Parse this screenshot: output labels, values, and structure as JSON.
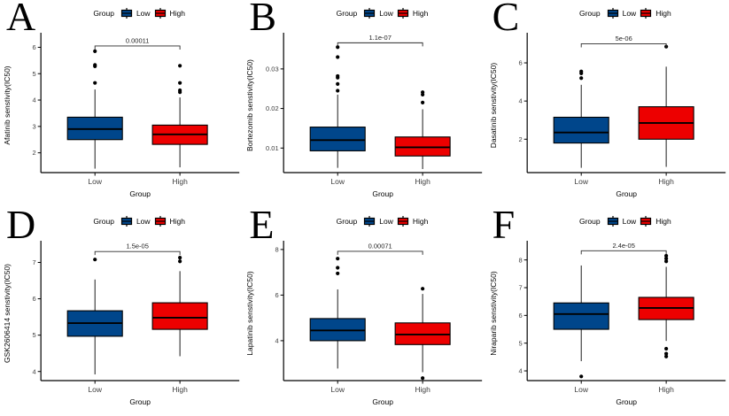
{
  "figure": {
    "background": "#ffffff",
    "legend": {
      "title": "Group",
      "items": [
        {
          "label": "Low",
          "color": "#00468B"
        },
        {
          "label": "High",
          "color": "#ED0000"
        }
      ]
    }
  },
  "chart_data": [
    {
      "type": "box",
      "panel": "A",
      "ylabel": "Afatinib senstivity(IC50)",
      "xlabel": "Group",
      "categories": [
        "Low",
        "High"
      ],
      "pvalue": "0.00011",
      "bracket_y": 6.05,
      "ylim": [
        1.25,
        6.35
      ],
      "yticks": [
        {
          "v": 2,
          "label": "2"
        },
        {
          "v": 3,
          "label": "3"
        },
        {
          "v": 4,
          "label": "4"
        },
        {
          "v": 5,
          "label": "5"
        },
        {
          "v": 6,
          "label": "6"
        }
      ],
      "series": [
        {
          "name": "Low",
          "color": "#00468B",
          "whisker_low": 1.4,
          "q1": 2.5,
          "median": 2.9,
          "q3": 3.35,
          "whisker_high": 4.4,
          "outliers": [
            4.65,
            5.28,
            5.33,
            5.85
          ]
        },
        {
          "name": "High",
          "color": "#ED0000",
          "whisker_low": 1.45,
          "q1": 2.32,
          "median": 2.7,
          "q3": 3.05,
          "whisker_high": 4.1,
          "outliers": [
            4.3,
            4.37,
            4.65,
            5.3
          ]
        }
      ]
    },
    {
      "type": "box",
      "panel": "B",
      "ylabel": "Bortezomib senstivity(IC50)",
      "xlabel": "Group",
      "categories": [
        "Low",
        "High"
      ],
      "pvalue": "1.1e-07",
      "bracket_y": 0.0366,
      "ylim": [
        0.0038,
        0.0378
      ],
      "yticks": [
        {
          "v": 0.01,
          "label": "0.01"
        },
        {
          "v": 0.02,
          "label": "0.02"
        },
        {
          "v": 0.03,
          "label": "0.03"
        }
      ],
      "series": [
        {
          "name": "Low",
          "color": "#00468B",
          "whisker_low": 0.005,
          "q1": 0.0093,
          "median": 0.012,
          "q3": 0.0153,
          "whisker_high": 0.0235,
          "outliers": [
            0.0245,
            0.0262,
            0.0278,
            0.0282,
            0.033,
            0.0355
          ]
        },
        {
          "name": "High",
          "color": "#ED0000",
          "whisker_low": 0.0047,
          "q1": 0.008,
          "median": 0.0102,
          "q3": 0.0128,
          "whisker_high": 0.0198,
          "outliers": [
            0.0215,
            0.0235,
            0.0241
          ]
        }
      ]
    },
    {
      "type": "box",
      "panel": "C",
      "ylabel": "Dasatinib senstivity(IC50)",
      "xlabel": "Group",
      "categories": [
        "Low",
        "High"
      ],
      "pvalue": "5e-06",
      "bracket_y": 7.0,
      "ylim": [
        0.25,
        7.3
      ],
      "yticks": [
        {
          "v": 2,
          "label": "2"
        },
        {
          "v": 4,
          "label": "4"
        },
        {
          "v": 6,
          "label": "6"
        }
      ],
      "series": [
        {
          "name": "Low",
          "color": "#00468B",
          "whisker_low": 0.5,
          "q1": 1.8,
          "median": 2.35,
          "q3": 3.15,
          "whisker_high": 4.85,
          "outliers": [
            5.2,
            5.45,
            5.55
          ]
        },
        {
          "name": "High",
          "color": "#ED0000",
          "whisker_low": 0.55,
          "q1": 2.0,
          "median": 2.85,
          "q3": 3.7,
          "whisker_high": 5.8,
          "outliers": [
            6.85
          ]
        }
      ]
    },
    {
      "type": "box",
      "panel": "D",
      "ylabel": "GSK2606414 senstivity(IC50)",
      "xlabel": "Group",
      "categories": [
        "Low",
        "High"
      ],
      "pvalue": "1.5e-05",
      "bracket_y": 7.3,
      "ylim": [
        3.75,
        7.45
      ],
      "yticks": [
        {
          "v": 4,
          "label": "4"
        },
        {
          "v": 5,
          "label": "5"
        },
        {
          "v": 6,
          "label": "6"
        },
        {
          "v": 7,
          "label": "7"
        }
      ],
      "series": [
        {
          "name": "Low",
          "color": "#00468B",
          "whisker_low": 3.92,
          "q1": 4.97,
          "median": 5.33,
          "q3": 5.67,
          "whisker_high": 6.53,
          "outliers": [
            7.08
          ]
        },
        {
          "name": "High",
          "color": "#ED0000",
          "whisker_low": 4.42,
          "q1": 5.16,
          "median": 5.48,
          "q3": 5.89,
          "whisker_high": 6.76,
          "outliers": [
            7.13,
            7.03
          ]
        }
      ]
    },
    {
      "type": "box",
      "panel": "E",
      "ylabel": "Lapatinib senstivity(IC50)",
      "xlabel": "Group",
      "categories": [
        "Low",
        "High"
      ],
      "pvalue": "0.00071",
      "bracket_y": 7.92,
      "ylim": [
        2.25,
        8.15
      ],
      "yticks": [
        {
          "v": 4,
          "label": "4"
        },
        {
          "v": 6,
          "label": "6"
        },
        {
          "v": 8,
          "label": "8"
        }
      ],
      "series": [
        {
          "name": "Low",
          "color": "#00468B",
          "whisker_low": 2.78,
          "q1": 4.0,
          "median": 4.45,
          "q3": 4.97,
          "whisker_high": 6.25,
          "outliers": [
            6.95,
            7.2,
            7.6
          ]
        },
        {
          "name": "High",
          "color": "#ED0000",
          "whisker_low": 2.62,
          "q1": 3.83,
          "median": 4.27,
          "q3": 4.78,
          "whisker_high": 6.05,
          "outliers": [
            6.28,
            2.36
          ]
        }
      ]
    },
    {
      "type": "box",
      "panel": "F",
      "ylabel": "Niraparib senstivity(IC50)",
      "xlabel": "Group",
      "categories": [
        "Low",
        "High"
      ],
      "pvalue": "2.4e-05",
      "bracket_y": 8.33,
      "ylim": [
        3.65,
        8.5
      ],
      "yticks": [
        {
          "v": 4,
          "label": "4"
        },
        {
          "v": 5,
          "label": "5"
        },
        {
          "v": 6,
          "label": "6"
        },
        {
          "v": 7,
          "label": "7"
        },
        {
          "v": 8,
          "label": "8"
        }
      ],
      "series": [
        {
          "name": "Low",
          "color": "#00468B",
          "whisker_low": 4.35,
          "q1": 5.5,
          "median": 6.05,
          "q3": 6.45,
          "whisker_high": 7.8,
          "outliers": [
            3.8
          ]
        },
        {
          "name": "High",
          "color": "#ED0000",
          "whisker_low": 5.08,
          "q1": 5.85,
          "median": 6.27,
          "q3": 6.65,
          "whisker_high": 7.75,
          "outliers": [
            8.15,
            8.05,
            7.95,
            4.8,
            4.62,
            4.52
          ]
        }
      ]
    }
  ]
}
